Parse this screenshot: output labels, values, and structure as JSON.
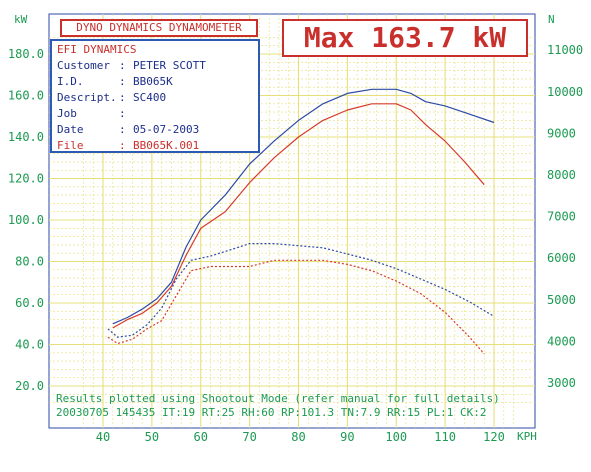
{
  "header": {
    "title": "DYNO DYNAMICS DYNAMOMETER",
    "max_label": "Max 163.7 kW"
  },
  "info": {
    "heading": "EFI DYNAMICS",
    "rows": [
      {
        "label": "Customer",
        "value": "PETER SCOTT"
      },
      {
        "label": "I.D.",
        "value": "BB065K"
      },
      {
        "label": "Descript.",
        "value": "SC400"
      },
      {
        "label": "Job",
        "value": ""
      },
      {
        "label": "Date",
        "value": "05-07-2003"
      },
      {
        "label": "File",
        "value": "BB065K.001"
      }
    ]
  },
  "footer": {
    "line1": "Results plotted using Shootout Mode (refer manual for full details)",
    "line2": "20030705 145435 IT:19 RT:25 RH:60 RP:101.3 TN:7.9 RR:15 PL:1 CK:2"
  },
  "colors": {
    "grid": "#e6e07a",
    "axis": "#1c9a52",
    "red": "#d63a2c",
    "blue": "#2c4aa8"
  },
  "chart_data": {
    "type": "line",
    "grid": true,
    "xlabel": "KPH",
    "ylabel": "kW",
    "y2label": "N",
    "xlim": [
      35,
      125
    ],
    "ylim": [
      10,
      190
    ],
    "y2lim": [
      2500,
      12000
    ],
    "xticks": [
      40,
      50,
      60,
      70,
      80,
      90,
      100,
      110,
      120
    ],
    "yticks": [
      20,
      40,
      60,
      80,
      100,
      120,
      140,
      160,
      180
    ],
    "ytick_labels": [
      "20.0",
      "40.0",
      "60.0",
      "80.0",
      "100.0",
      "120.0",
      "140.0",
      "160.0",
      "180.0"
    ],
    "y2ticks": [
      3000,
      4000,
      5000,
      6000,
      7000,
      8000,
      9000,
      10000,
      11000
    ],
    "series": [
      {
        "axis": "y",
        "color": "red",
        "style": "solid",
        "x": [
          42,
          45,
          48,
          51,
          54,
          57,
          60,
          65,
          70,
          75,
          80,
          85,
          90,
          95,
          100,
          103,
          106,
          110,
          114,
          118
        ],
        "y": [
          48,
          52,
          55,
          60,
          68,
          83,
          96,
          104,
          118,
          130,
          140,
          148,
          153,
          156,
          156,
          153,
          146,
          138,
          128,
          117
        ]
      },
      {
        "axis": "y",
        "color": "blue",
        "style": "solid",
        "x": [
          42,
          45,
          48,
          51,
          54,
          57,
          60,
          65,
          70,
          75,
          80,
          85,
          90,
          95,
          100,
          103,
          106,
          110,
          115,
          120
        ],
        "y": [
          50,
          53,
          57,
          62,
          70,
          87,
          100,
          112,
          127,
          138,
          148,
          156,
          161,
          163,
          163,
          161,
          157,
          155,
          151,
          147
        ]
      },
      {
        "axis": "y2",
        "color": "red",
        "style": "dotted",
        "x": [
          41,
          43,
          46,
          49,
          52,
          55,
          58,
          62,
          66,
          70,
          75,
          80,
          85,
          90,
          95,
          100,
          105,
          110,
          115,
          118
        ],
        "y": [
          4100,
          3950,
          4050,
          4300,
          4500,
          5100,
          5700,
          5800,
          5800,
          5800,
          5950,
          5950,
          5950,
          5850,
          5700,
          5450,
          5150,
          4700,
          4100,
          3700
        ]
      },
      {
        "axis": "y2",
        "color": "blue",
        "style": "dotted",
        "x": [
          41,
          43,
          46,
          49,
          52,
          55,
          58,
          62,
          66,
          70,
          75,
          80,
          85,
          90,
          95,
          100,
          105,
          110,
          115,
          120
        ],
        "y": [
          4300,
          4100,
          4150,
          4400,
          4800,
          5500,
          5950,
          6050,
          6200,
          6350,
          6350,
          6300,
          6250,
          6100,
          5950,
          5750,
          5500,
          5250,
          4950,
          4600
        ]
      }
    ]
  }
}
